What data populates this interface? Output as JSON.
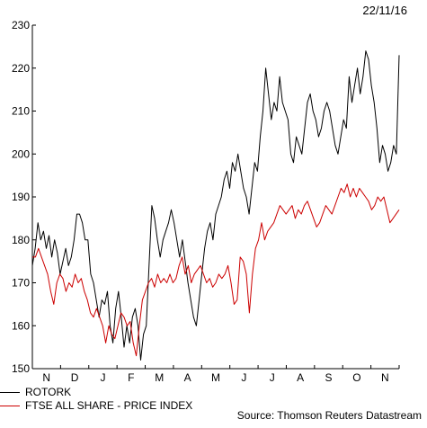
{
  "date": "22/11/16",
  "source": "Source: Thomson Reuters Datastream",
  "chart_data": {
    "type": "line",
    "title": "",
    "xlabel": "",
    "ylabel": "",
    "ylim": [
      150,
      230
    ],
    "yticks": [
      150,
      160,
      170,
      180,
      190,
      200,
      210,
      220,
      230
    ],
    "x_ticks": [
      "N",
      "D",
      "J",
      "F",
      "M",
      "A",
      "M",
      "J",
      "J",
      "A",
      "S",
      "O",
      "N"
    ],
    "grid": false,
    "legend": "bottom-left",
    "series": [
      {
        "name": "ROTORK",
        "color": "#000000",
        "values": [
          174,
          178,
          184,
          180,
          182,
          178,
          181,
          176,
          180,
          177,
          172,
          175,
          178,
          174,
          176,
          180,
          186,
          186,
          184,
          180,
          180,
          172,
          170,
          166,
          162,
          166,
          165,
          168,
          160,
          156,
          164,
          168,
          162,
          155,
          160,
          156,
          162,
          164,
          160,
          152,
          158,
          160,
          174,
          188,
          185,
          180,
          176,
          180,
          182,
          184,
          187,
          184,
          180,
          176,
          180,
          175,
          170,
          166,
          162,
          160,
          166,
          172,
          178,
          182,
          184,
          180,
          186,
          188,
          190,
          194,
          196,
          192,
          198,
          196,
          200,
          196,
          192,
          190,
          186,
          192,
          198,
          196,
          204,
          210,
          220,
          214,
          208,
          212,
          210,
          218,
          212,
          210,
          208,
          200,
          198,
          204,
          202,
          200,
          206,
          212,
          214,
          210,
          208,
          204,
          206,
          210,
          212,
          210,
          206,
          202,
          200,
          204,
          208,
          206,
          218,
          212,
          216,
          220,
          214,
          218,
          224,
          222,
          216,
          212,
          206,
          198,
          202,
          200,
          196,
          198,
          202,
          200,
          223
        ]
      },
      {
        "name": "FTSE ALL SHARE - PRICE INDEX",
        "color": "#cc0000",
        "values": [
          176,
          176,
          178,
          176,
          174,
          172,
          168,
          165,
          170,
          172,
          171,
          168,
          170,
          169,
          172,
          170,
          171,
          168,
          166,
          163,
          162,
          164,
          162,
          160,
          156,
          160,
          158,
          157,
          160,
          163,
          162,
          160,
          161,
          156,
          153,
          160,
          166,
          168,
          170,
          171,
          169,
          172,
          170,
          171,
          170,
          172,
          170,
          171,
          174,
          176,
          172,
          174,
          170,
          172,
          173,
          174,
          172,
          170,
          171,
          169,
          170,
          172,
          171,
          172,
          174,
          170,
          165,
          166,
          176,
          175,
          172,
          163,
          172,
          178,
          180,
          184,
          180,
          182,
          183,
          184,
          186,
          188,
          187,
          186,
          187,
          188,
          185,
          187,
          186,
          188,
          189,
          187,
          185,
          183,
          184,
          186,
          188,
          187,
          186,
          188,
          190,
          192,
          191,
          193,
          190,
          192,
          190,
          192,
          191,
          190,
          189,
          187,
          188,
          190,
          189,
          190,
          187,
          184,
          185,
          186,
          187
        ]
      }
    ]
  }
}
